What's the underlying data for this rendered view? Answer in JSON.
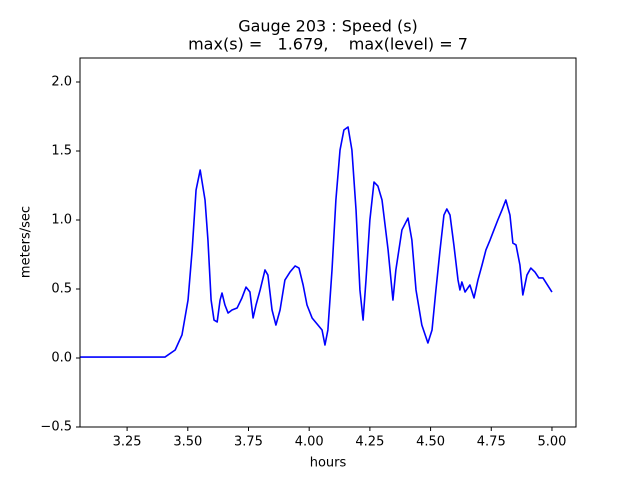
{
  "chart_data": {
    "type": "line",
    "title": "Gauge 203 : Speed (s)",
    "subtitle": "max(s) =   1.679,    max(level) = 7",
    "xlabel": "hours",
    "ylabel": "meters/sec",
    "color": "#0000ff",
    "x": [
      3.056,
      3.221,
      3.406,
      3.448,
      3.476,
      3.501,
      3.518,
      3.534,
      3.551,
      3.571,
      3.583,
      3.596,
      3.608,
      3.621,
      3.633,
      3.641,
      3.653,
      3.666,
      3.682,
      3.703,
      3.723,
      3.74,
      3.756,
      3.769,
      3.781,
      3.798,
      3.818,
      3.83,
      3.847,
      3.863,
      3.88,
      3.9,
      3.921,
      3.942,
      3.958,
      3.975,
      3.991,
      4.012,
      4.036,
      4.053,
      4.065,
      4.077,
      4.094,
      4.11,
      4.127,
      4.143,
      4.16,
      4.176,
      4.193,
      4.209,
      4.222,
      4.234,
      4.25,
      4.267,
      4.283,
      4.3,
      4.325,
      4.345,
      4.357,
      4.382,
      4.407,
      4.423,
      4.44,
      4.464,
      4.489,
      4.506,
      4.522,
      4.539,
      4.555,
      4.567,
      4.58,
      4.596,
      4.613,
      4.621,
      4.629,
      4.642,
      4.662,
      4.679,
      4.695,
      4.712,
      4.728,
      4.745,
      4.761,
      4.777,
      4.794,
      4.81,
      4.827,
      4.839,
      4.852,
      4.868,
      4.88,
      4.897,
      4.913,
      4.93,
      4.946,
      4.963,
      4.979,
      5.0
    ],
    "values": [
      0.007,
      0.007,
      0.007,
      0.058,
      0.167,
      0.42,
      0.783,
      1.217,
      1.362,
      1.145,
      0.855,
      0.42,
      0.275,
      0.261,
      0.42,
      0.471,
      0.384,
      0.326,
      0.348,
      0.362,
      0.435,
      0.514,
      0.478,
      0.29,
      0.384,
      0.493,
      0.638,
      0.601,
      0.348,
      0.239,
      0.348,
      0.565,
      0.623,
      0.667,
      0.652,
      0.529,
      0.384,
      0.29,
      0.239,
      0.203,
      0.094,
      0.203,
      0.638,
      1.145,
      1.507,
      1.652,
      1.674,
      1.507,
      1.072,
      0.493,
      0.275,
      0.565,
      1.0,
      1.275,
      1.246,
      1.145,
      0.783,
      0.42,
      0.638,
      0.928,
      1.014,
      0.855,
      0.493,
      0.239,
      0.109,
      0.203,
      0.493,
      0.783,
      1.036,
      1.08,
      1.036,
      0.819,
      0.565,
      0.493,
      0.551,
      0.478,
      0.529,
      0.435,
      0.565,
      0.674,
      0.783,
      0.855,
      0.928,
      1.0,
      1.072,
      1.145,
      1.036,
      0.833,
      0.819,
      0.674,
      0.457,
      0.601,
      0.652,
      0.623,
      0.58,
      0.58,
      0.536,
      0.478
    ],
    "xlim": [
      3.056,
      5.099
    ],
    "ylim": [
      -0.5,
      2.174
    ],
    "xticks": [
      3.25,
      {
        "value": 3.5,
        "label": "3.50"
      },
      3.75,
      {
        "value": 4.0,
        "label": "4.00"
      },
      4.25,
      {
        "value": 4.5,
        "label": "4.50"
      },
      4.75,
      {
        "value": 5.0,
        "label": "5.00"
      }
    ],
    "yticks": [
      {
        "value": -0.5,
        "label": "−0.5"
      },
      {
        "value": 0.0,
        "label": "0.0"
      },
      0.5,
      {
        "value": 1.0,
        "label": "1.0"
      },
      1.5,
      {
        "value": 2.0,
        "label": "2.0"
      }
    ]
  }
}
